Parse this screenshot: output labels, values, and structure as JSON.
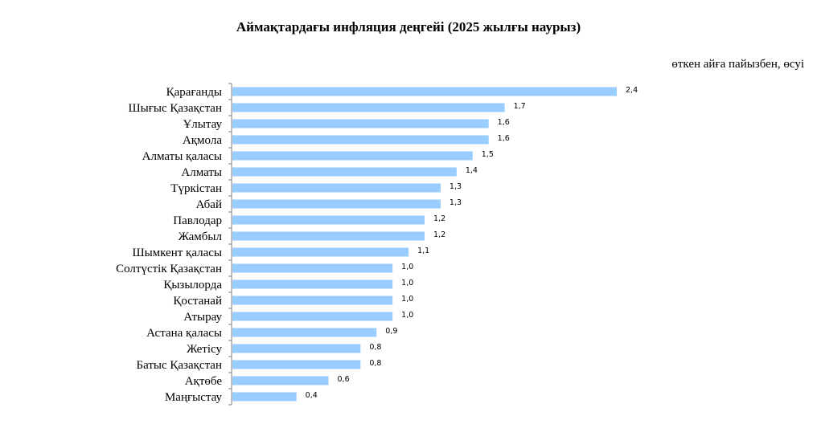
{
  "chart_data": {
    "type": "bar",
    "orientation": "horizontal",
    "title": "Аймақтардағы  инфляция деңгейі (2025 жылғы наурыз)",
    "unit_note": "өткен айға пайызбен, өсуі",
    "bar_color": "#99ccff",
    "axis_color": "#808080",
    "xlim": [
      0,
      2.4
    ],
    "grid": false,
    "legend": "none",
    "categories": [
      "Қарағанды",
      "Шығыс Қазақстан",
      "Ұлытау",
      "Ақмола",
      "Алматы қаласы",
      "Алматы",
      "Түркістан",
      "Абай",
      "Павлодар",
      "Жамбыл",
      "Шымкент қаласы",
      "Солтүстік Қазақстан",
      "Қызылорда",
      "Қостанай",
      "Атырау",
      "Астана қаласы",
      "Жетісу",
      "Батыс Қазақстан",
      "Ақтөбе",
      "Маңғыстау"
    ],
    "values": [
      2.4,
      1.7,
      1.6,
      1.6,
      1.5,
      1.4,
      1.3,
      1.3,
      1.2,
      1.2,
      1.1,
      1.0,
      1.0,
      1.0,
      1.0,
      0.9,
      0.8,
      0.8,
      0.6,
      0.4
    ],
    "value_labels": [
      "2,4",
      "1,7",
      "1,6",
      "1,6",
      "1,5",
      "1,4",
      "1,3",
      "1,3",
      "1,2",
      "1,2",
      "1,1",
      "1,0",
      "1,0",
      "1,0",
      "1,0",
      "0,9",
      "0,8",
      "0,8",
      "0,6",
      "0,4"
    ]
  }
}
